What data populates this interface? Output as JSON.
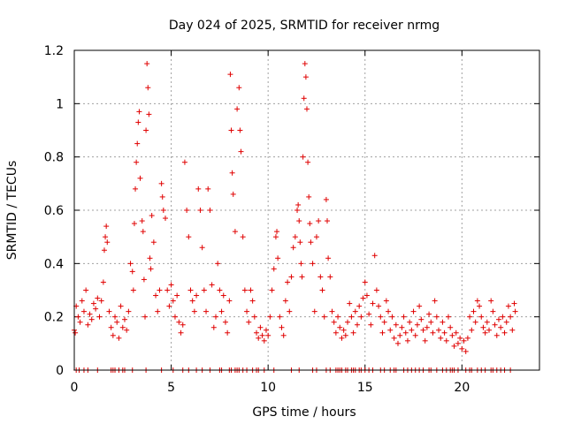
{
  "chart_data": {
    "type": "scatter",
    "title": "Day 024 of 2025, SRMTID for receiver nrmg",
    "xlabel": "GPS time / hours",
    "ylabel": "SRMTID / TECUs",
    "xlim": [
      0,
      24
    ],
    "ylim": [
      0,
      1.2
    ],
    "xticks": [
      0,
      5,
      10,
      15,
      20
    ],
    "yticks": [
      0,
      0.2,
      0.4,
      0.6,
      0.8,
      1.0,
      1.2
    ],
    "ytick_labels": [
      "0",
      "0.2",
      "0.4",
      "0.6",
      "0.8",
      "1",
      "1.2"
    ],
    "grid": true,
    "marker": "+",
    "color": "#e00000",
    "series": [
      {
        "name": "SRMTID",
        "points": [
          [
            0.0,
            0.15
          ],
          [
            0.05,
            0.14
          ],
          [
            0.1,
            0.24
          ],
          [
            0.2,
            0.2
          ],
          [
            0.3,
            0.18
          ],
          [
            0.4,
            0.26
          ],
          [
            0.5,
            0.22
          ],
          [
            0.6,
            0.3
          ],
          [
            0.7,
            0.17
          ],
          [
            0.8,
            0.21
          ],
          [
            0.9,
            0.19
          ],
          [
            1.0,
            0.25
          ],
          [
            1.1,
            0.23
          ],
          [
            1.2,
            0.27
          ],
          [
            1.3,
            0.2
          ],
          [
            1.4,
            0.26
          ],
          [
            1.5,
            0.33
          ],
          [
            1.55,
            0.45
          ],
          [
            1.6,
            0.5
          ],
          [
            1.65,
            0.54
          ],
          [
            1.7,
            0.48
          ],
          [
            1.8,
            0.22
          ],
          [
            1.9,
            0.16
          ],
          [
            2.0,
            0.13
          ],
          [
            2.1,
            0.2
          ],
          [
            2.2,
            0.18
          ],
          [
            2.3,
            0.12
          ],
          [
            2.4,
            0.24
          ],
          [
            2.5,
            0.16
          ],
          [
            2.6,
            0.19
          ],
          [
            2.7,
            0.15
          ],
          [
            2.8,
            0.22
          ],
          [
            2.9,
            0.4
          ],
          [
            3.0,
            0.37
          ],
          [
            3.05,
            0.3
          ],
          [
            3.1,
            0.55
          ],
          [
            3.15,
            0.68
          ],
          [
            3.2,
            0.78
          ],
          [
            3.25,
            0.85
          ],
          [
            3.3,
            0.93
          ],
          [
            3.35,
            0.97
          ],
          [
            3.4,
            0.72
          ],
          [
            3.5,
            0.56
          ],
          [
            3.55,
            0.52
          ],
          [
            3.6,
            0.34
          ],
          [
            3.65,
            0.2
          ],
          [
            3.7,
            0.9
          ],
          [
            3.75,
            1.15
          ],
          [
            3.8,
            1.06
          ],
          [
            3.85,
            0.96
          ],
          [
            3.9,
            0.42
          ],
          [
            3.95,
            0.38
          ],
          [
            4.0,
            0.58
          ],
          [
            4.1,
            0.48
          ],
          [
            4.2,
            0.28
          ],
          [
            4.3,
            0.22
          ],
          [
            4.4,
            0.3
          ],
          [
            4.5,
            0.7
          ],
          [
            4.55,
            0.65
          ],
          [
            4.6,
            0.6
          ],
          [
            4.7,
            0.57
          ],
          [
            4.8,
            0.3
          ],
          [
            4.9,
            0.24
          ],
          [
            5.0,
            0.32
          ],
          [
            5.1,
            0.26
          ],
          [
            5.2,
            0.2
          ],
          [
            5.3,
            0.28
          ],
          [
            5.4,
            0.18
          ],
          [
            5.5,
            0.14
          ],
          [
            5.6,
            0.17
          ],
          [
            5.7,
            0.78
          ],
          [
            5.8,
            0.6
          ],
          [
            5.9,
            0.5
          ],
          [
            6.0,
            0.3
          ],
          [
            6.1,
            0.26
          ],
          [
            6.2,
            0.22
          ],
          [
            6.3,
            0.28
          ],
          [
            6.4,
            0.68
          ],
          [
            6.5,
            0.6
          ],
          [
            6.6,
            0.46
          ],
          [
            6.7,
            0.3
          ],
          [
            6.8,
            0.22
          ],
          [
            6.9,
            0.68
          ],
          [
            7.0,
            0.6
          ],
          [
            7.1,
            0.32
          ],
          [
            7.2,
            0.16
          ],
          [
            7.3,
            0.2
          ],
          [
            7.4,
            0.4
          ],
          [
            7.5,
            0.3
          ],
          [
            7.6,
            0.22
          ],
          [
            7.7,
            0.28
          ],
          [
            7.8,
            0.18
          ],
          [
            7.9,
            0.14
          ],
          [
            8.0,
            0.26
          ],
          [
            8.05,
            1.11
          ],
          [
            8.1,
            0.9
          ],
          [
            8.15,
            0.74
          ],
          [
            8.2,
            0.66
          ],
          [
            8.3,
            0.52
          ],
          [
            8.4,
            0.98
          ],
          [
            8.5,
            1.06
          ],
          [
            8.55,
            0.9
          ],
          [
            8.6,
            0.82
          ],
          [
            8.7,
            0.5
          ],
          [
            8.8,
            0.3
          ],
          [
            8.9,
            0.22
          ],
          [
            9.0,
            0.18
          ],
          [
            9.1,
            0.3
          ],
          [
            9.2,
            0.26
          ],
          [
            9.3,
            0.2
          ],
          [
            9.4,
            0.14
          ],
          [
            9.5,
            0.12
          ],
          [
            9.6,
            0.16
          ],
          [
            9.7,
            0.13
          ],
          [
            9.8,
            0.11
          ],
          [
            9.9,
            0.15
          ],
          [
            10.0,
            0.13
          ],
          [
            10.1,
            0.2
          ],
          [
            10.2,
            0.3
          ],
          [
            10.3,
            0.38
          ],
          [
            10.4,
            0.5
          ],
          [
            10.45,
            0.52
          ],
          [
            10.5,
            0.42
          ],
          [
            10.6,
            0.2
          ],
          [
            10.7,
            0.16
          ],
          [
            10.8,
            0.13
          ],
          [
            10.9,
            0.26
          ],
          [
            11.0,
            0.33
          ],
          [
            11.1,
            0.22
          ],
          [
            11.2,
            0.35
          ],
          [
            11.3,
            0.46
          ],
          [
            11.4,
            0.5
          ],
          [
            11.5,
            0.6
          ],
          [
            11.55,
            0.62
          ],
          [
            11.6,
            0.56
          ],
          [
            11.65,
            0.48
          ],
          [
            11.7,
            0.4
          ],
          [
            11.75,
            0.35
          ],
          [
            11.8,
            0.8
          ],
          [
            11.85,
            1.02
          ],
          [
            11.9,
            1.15
          ],
          [
            11.95,
            1.1
          ],
          [
            12.0,
            0.98
          ],
          [
            12.05,
            0.78
          ],
          [
            12.1,
            0.65
          ],
          [
            12.15,
            0.55
          ],
          [
            12.2,
            0.48
          ],
          [
            12.3,
            0.4
          ],
          [
            12.4,
            0.22
          ],
          [
            12.5,
            0.5
          ],
          [
            12.6,
            0.56
          ],
          [
            12.7,
            0.35
          ],
          [
            12.8,
            0.3
          ],
          [
            12.9,
            0.2
          ],
          [
            13.0,
            0.64
          ],
          [
            13.05,
            0.56
          ],
          [
            13.1,
            0.42
          ],
          [
            13.2,
            0.35
          ],
          [
            13.3,
            0.22
          ],
          [
            13.4,
            0.18
          ],
          [
            13.5,
            0.14
          ],
          [
            13.6,
            0.2
          ],
          [
            13.7,
            0.16
          ],
          [
            13.8,
            0.12
          ],
          [
            13.9,
            0.15
          ],
          [
            14.0,
            0.13
          ],
          [
            14.1,
            0.18
          ],
          [
            14.2,
            0.25
          ],
          [
            14.3,
            0.2
          ],
          [
            14.4,
            0.14
          ],
          [
            14.5,
            0.22
          ],
          [
            14.6,
            0.17
          ],
          [
            14.7,
            0.24
          ],
          [
            14.8,
            0.2
          ],
          [
            14.9,
            0.27
          ],
          [
            15.0,
            0.33
          ],
          [
            15.1,
            0.28
          ],
          [
            15.2,
            0.21
          ],
          [
            15.3,
            0.17
          ],
          [
            15.4,
            0.25
          ],
          [
            15.5,
            0.43
          ],
          [
            15.6,
            0.3
          ],
          [
            15.7,
            0.24
          ],
          [
            15.8,
            0.2
          ],
          [
            15.9,
            0.14
          ],
          [
            16.0,
            0.18
          ],
          [
            16.1,
            0.26
          ],
          [
            16.2,
            0.22
          ],
          [
            16.3,
            0.15
          ],
          [
            16.4,
            0.2
          ],
          [
            16.5,
            0.12
          ],
          [
            16.6,
            0.17
          ],
          [
            16.7,
            0.1
          ],
          [
            16.8,
            0.13
          ],
          [
            16.9,
            0.16
          ],
          [
            17.0,
            0.2
          ],
          [
            17.1,
            0.14
          ],
          [
            17.2,
            0.11
          ],
          [
            17.3,
            0.18
          ],
          [
            17.4,
            0.15
          ],
          [
            17.5,
            0.22
          ],
          [
            17.6,
            0.13
          ],
          [
            17.7,
            0.17
          ],
          [
            17.8,
            0.24
          ],
          [
            17.9,
            0.19
          ],
          [
            18.0,
            0.15
          ],
          [
            18.1,
            0.11
          ],
          [
            18.2,
            0.16
          ],
          [
            18.3,
            0.21
          ],
          [
            18.4,
            0.18
          ],
          [
            18.5,
            0.14
          ],
          [
            18.6,
            0.26
          ],
          [
            18.7,
            0.2
          ],
          [
            18.8,
            0.15
          ],
          [
            18.9,
            0.12
          ],
          [
            19.0,
            0.18
          ],
          [
            19.1,
            0.14
          ],
          [
            19.2,
            0.11
          ],
          [
            19.3,
            0.2
          ],
          [
            19.4,
            0.16
          ],
          [
            19.5,
            0.13
          ],
          [
            19.6,
            0.09
          ],
          [
            19.7,
            0.14
          ],
          [
            19.8,
            0.1
          ],
          [
            19.9,
            0.12
          ],
          [
            20.0,
            0.08
          ],
          [
            20.1,
            0.11
          ],
          [
            20.2,
            0.07
          ],
          [
            20.3,
            0.12
          ],
          [
            20.4,
            0.2
          ],
          [
            20.5,
            0.15
          ],
          [
            20.6,
            0.22
          ],
          [
            20.7,
            0.18
          ],
          [
            20.8,
            0.26
          ],
          [
            20.9,
            0.24
          ],
          [
            21.0,
            0.2
          ],
          [
            21.1,
            0.16
          ],
          [
            21.2,
            0.14
          ],
          [
            21.3,
            0.18
          ],
          [
            21.4,
            0.15
          ],
          [
            21.5,
            0.26
          ],
          [
            21.6,
            0.22
          ],
          [
            21.7,
            0.17
          ],
          [
            21.8,
            0.13
          ],
          [
            21.9,
            0.19
          ],
          [
            22.0,
            0.16
          ],
          [
            22.1,
            0.2
          ],
          [
            22.2,
            0.14
          ],
          [
            22.3,
            0.18
          ],
          [
            22.4,
            0.24
          ],
          [
            22.5,
            0.2
          ],
          [
            22.6,
            0.15
          ],
          [
            22.7,
            0.25
          ],
          [
            22.75,
            0.22
          ]
        ]
      }
    ],
    "zero_points_x": [
      0.1,
      0.25,
      0.5,
      0.7,
      1.2,
      1.9,
      2.0,
      2.1,
      2.3,
      2.5,
      2.6,
      3.0,
      3.7,
      4.5,
      5.1,
      5.6,
      5.9,
      6.3,
      6.6,
      7.0,
      7.5,
      7.6,
      8.0,
      8.1,
      8.3,
      8.4,
      8.5,
      8.7,
      8.9,
      9.2,
      9.4,
      9.5,
      9.8,
      10.3,
      11.2,
      11.6,
      12.3,
      12.5,
      13.0,
      13.2,
      13.5,
      13.6,
      13.7,
      13.8,
      14.0,
      14.1,
      14.3,
      14.4,
      14.5,
      14.7,
      14.8,
      15.0,
      15.2,
      15.4,
      15.8,
      16.0,
      16.3,
      16.5,
      16.6,
      17.0,
      17.2,
      17.4,
      17.6,
      17.8,
      18.0,
      18.3,
      18.4,
      18.7,
      19.0,
      19.2,
      19.4,
      19.5,
      19.6,
      19.8,
      20.2,
      20.4,
      20.5,
      20.8,
      21.0,
      21.2,
      21.5,
      21.6,
      21.8,
      22.0,
      22.2,
      22.5
    ]
  }
}
